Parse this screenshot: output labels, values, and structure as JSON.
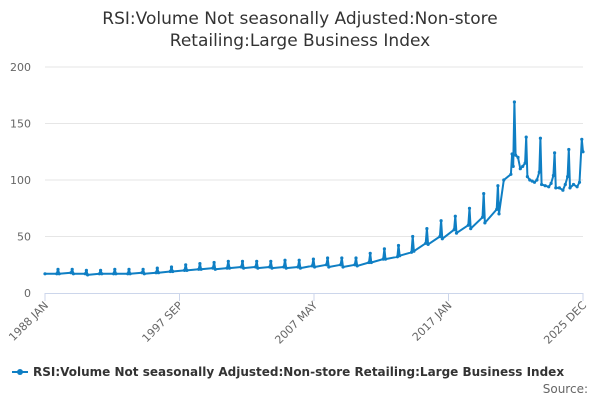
{
  "chart_data": {
    "type": "line",
    "title": "RSI:Volume Not seasonally Adjusted:Non-store Retailing:Large Business Index",
    "title_lines": [
      "RSI:Volume Not seasonally Adjusted:Non-store",
      "Retailing:Large Business Index"
    ],
    "xlabel": "",
    "ylabel": "",
    "ylim": [
      0,
      200
    ],
    "y_ticks": [
      "0",
      "50",
      "100",
      "150",
      "200"
    ],
    "x_ticks": [
      "1988 JAN",
      "1997 SEP",
      "2007 MAY",
      "2017 JAN",
      "2025 DEC"
    ],
    "x_range": [
      "1988-01",
      "2025-12"
    ],
    "grid": "horizontal",
    "legend_position": "bottom-left",
    "series": [
      {
        "name": "RSI:Volume Not seasonally Adjusted:Non-store Retailing:Large Business Index",
        "color": "#0f7fc4",
        "points": [
          [
            "1988-01",
            17
          ],
          [
            "1988-11",
            17
          ],
          [
            "1988-12",
            21
          ],
          [
            "1989-01",
            17
          ],
          [
            "1989-11",
            18
          ],
          [
            "1989-12",
            21
          ],
          [
            "1990-01",
            17
          ],
          [
            "1990-11",
            17
          ],
          [
            "1990-12",
            20
          ],
          [
            "1991-01",
            16
          ],
          [
            "1991-11",
            17
          ],
          [
            "1991-12",
            20
          ],
          [
            "1992-01",
            17
          ],
          [
            "1992-11",
            17
          ],
          [
            "1992-12",
            21
          ],
          [
            "1993-01",
            17
          ],
          [
            "1993-11",
            17
          ],
          [
            "1993-12",
            21
          ],
          [
            "1994-01",
            17
          ],
          [
            "1994-11",
            18
          ],
          [
            "1994-12",
            21
          ],
          [
            "1995-01",
            17
          ],
          [
            "1995-11",
            18
          ],
          [
            "1995-12",
            22
          ],
          [
            "1996-01",
            18
          ],
          [
            "1996-11",
            19
          ],
          [
            "1996-12",
            23
          ],
          [
            "1997-01",
            19
          ],
          [
            "1997-11",
            20
          ],
          [
            "1997-12",
            25
          ],
          [
            "1998-01",
            20
          ],
          [
            "1998-11",
            21
          ],
          [
            "1998-12",
            26
          ],
          [
            "1999-01",
            21
          ],
          [
            "1999-11",
            22
          ],
          [
            "1999-12",
            27
          ],
          [
            "2000-01",
            21
          ],
          [
            "2000-11",
            22
          ],
          [
            "2000-12",
            28
          ],
          [
            "2001-01",
            22
          ],
          [
            "2001-11",
            23
          ],
          [
            "2001-12",
            28
          ],
          [
            "2002-01",
            22
          ],
          [
            "2002-11",
            23
          ],
          [
            "2002-12",
            28
          ],
          [
            "2003-01",
            22
          ],
          [
            "2003-11",
            23
          ],
          [
            "2003-12",
            28
          ],
          [
            "2004-01",
            22
          ],
          [
            "2004-11",
            23
          ],
          [
            "2004-12",
            29
          ],
          [
            "2005-01",
            22
          ],
          [
            "2005-11",
            23
          ],
          [
            "2005-12",
            29
          ],
          [
            "2006-01",
            22
          ],
          [
            "2006-11",
            24
          ],
          [
            "2006-12",
            30
          ],
          [
            "2007-01",
            23
          ],
          [
            "2007-11",
            25
          ],
          [
            "2007-12",
            31
          ],
          [
            "2008-01",
            23
          ],
          [
            "2008-11",
            25
          ],
          [
            "2008-12",
            31
          ],
          [
            "2009-01",
            23
          ],
          [
            "2009-11",
            25
          ],
          [
            "2009-12",
            31
          ],
          [
            "2010-01",
            24
          ],
          [
            "2010-11",
            27
          ],
          [
            "2010-12",
            35
          ],
          [
            "2011-01",
            27
          ],
          [
            "2011-11",
            30
          ],
          [
            "2011-12",
            39
          ],
          [
            "2012-01",
            30
          ],
          [
            "2012-11",
            32
          ],
          [
            "2012-12",
            42
          ],
          [
            "2013-01",
            33
          ],
          [
            "2013-11",
            36
          ],
          [
            "2013-12",
            50
          ],
          [
            "2014-01",
            37
          ],
          [
            "2014-11",
            44
          ],
          [
            "2014-12",
            57
          ],
          [
            "2015-01",
            43
          ],
          [
            "2015-11",
            50
          ],
          [
            "2015-12",
            64
          ],
          [
            "2016-01",
            48
          ],
          [
            "2016-11",
            56
          ],
          [
            "2016-12",
            68
          ],
          [
            "2017-01",
            53
          ],
          [
            "2017-11",
            60
          ],
          [
            "2017-12",
            75
          ],
          [
            "2018-01",
            57
          ],
          [
            "2018-11",
            67
          ],
          [
            "2018-12",
            88
          ],
          [
            "2019-01",
            62
          ],
          [
            "2019-11",
            74
          ],
          [
            "2019-12",
            95
          ],
          [
            "2020-01",
            70
          ],
          [
            "2020-05",
            100
          ],
          [
            "2020-11",
            105
          ],
          [
            "2020-12",
            123
          ],
          [
            "2021-01",
            112
          ],
          [
            "2021-02",
            169
          ],
          [
            "2021-03",
            122
          ],
          [
            "2021-05",
            120
          ],
          [
            "2021-07",
            110
          ],
          [
            "2021-09",
            112
          ],
          [
            "2021-11",
            115
          ],
          [
            "2021-12",
            138
          ],
          [
            "2022-01",
            103
          ],
          [
            "2022-03",
            100
          ],
          [
            "2022-05",
            99
          ],
          [
            "2022-07",
            98
          ],
          [
            "2022-09",
            100
          ],
          [
            "2022-11",
            107
          ],
          [
            "2022-12",
            137
          ],
          [
            "2023-01",
            96
          ],
          [
            "2023-04",
            95
          ],
          [
            "2023-07",
            94
          ],
          [
            "2023-09",
            97
          ],
          [
            "2023-11",
            104
          ],
          [
            "2023-12",
            124
          ],
          [
            "2024-01",
            93
          ],
          [
            "2024-04",
            93
          ],
          [
            "2024-07",
            91
          ],
          [
            "2024-09",
            96
          ],
          [
            "2024-11",
            103
          ],
          [
            "2024-12",
            127
          ],
          [
            "2025-01",
            93
          ],
          [
            "2025-04",
            96
          ],
          [
            "2025-07",
            94
          ],
          [
            "2025-09",
            98
          ],
          [
            "2025-11",
            136
          ],
          [
            "2025-12",
            125
          ]
        ]
      }
    ]
  },
  "source_label": "Source:"
}
